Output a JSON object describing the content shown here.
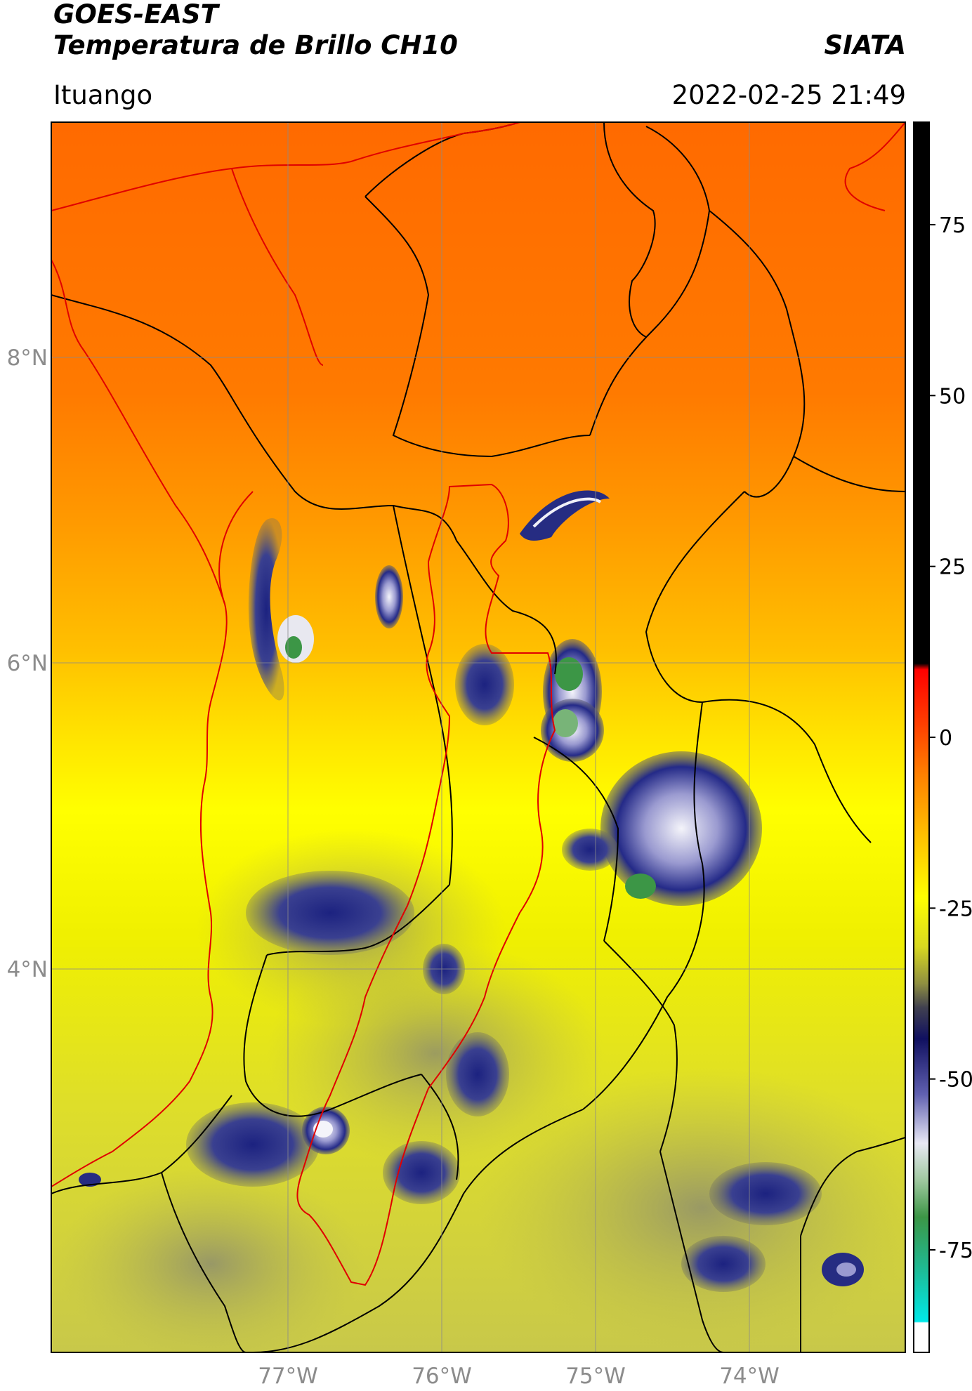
{
  "header": {
    "satellite": "GOES-EAST",
    "product": "Temperatura de Brillo CH10",
    "organization": "SIATA",
    "location": "Ituango",
    "timestamp": "2022-02-25 21:49"
  },
  "map": {
    "lon_range": [
      -78.55,
      -73.0
    ],
    "lat_range": [
      1.4,
      9.45
    ],
    "lat_ticks": [
      {
        "value": 8,
        "label": "8°N"
      },
      {
        "value": 6,
        "label": "6°N"
      },
      {
        "value": 4,
        "label": "4°N"
      }
    ],
    "lon_ticks": [
      {
        "value": -77,
        "label": "77°W"
      },
      {
        "value": -76,
        "label": "76°W"
      },
      {
        "value": -75,
        "label": "75°W"
      },
      {
        "value": -74,
        "label": "74°W"
      }
    ],
    "gridlines": true,
    "colors": {
      "warm_north": "#ff6e00",
      "mid": "#ffb400",
      "cool": "#ffff00",
      "cold_land": "#c8c83c",
      "deep_convection": "#18207a",
      "cloud_white": "#f2f2f8",
      "core_green": "#3c9646",
      "department_border": "#cc0000",
      "country_border": "#000000"
    }
  },
  "colorbar": {
    "range": [
      -90,
      90
    ],
    "ticks": [
      {
        "value": 75,
        "label": "75"
      },
      {
        "value": 50,
        "label": "50"
      },
      {
        "value": 25,
        "label": "25"
      },
      {
        "value": 0,
        "label": "0"
      },
      {
        "value": -25,
        "label": "-25"
      },
      {
        "value": -50,
        "label": "-50"
      },
      {
        "value": -75,
        "label": "-75"
      }
    ]
  }
}
